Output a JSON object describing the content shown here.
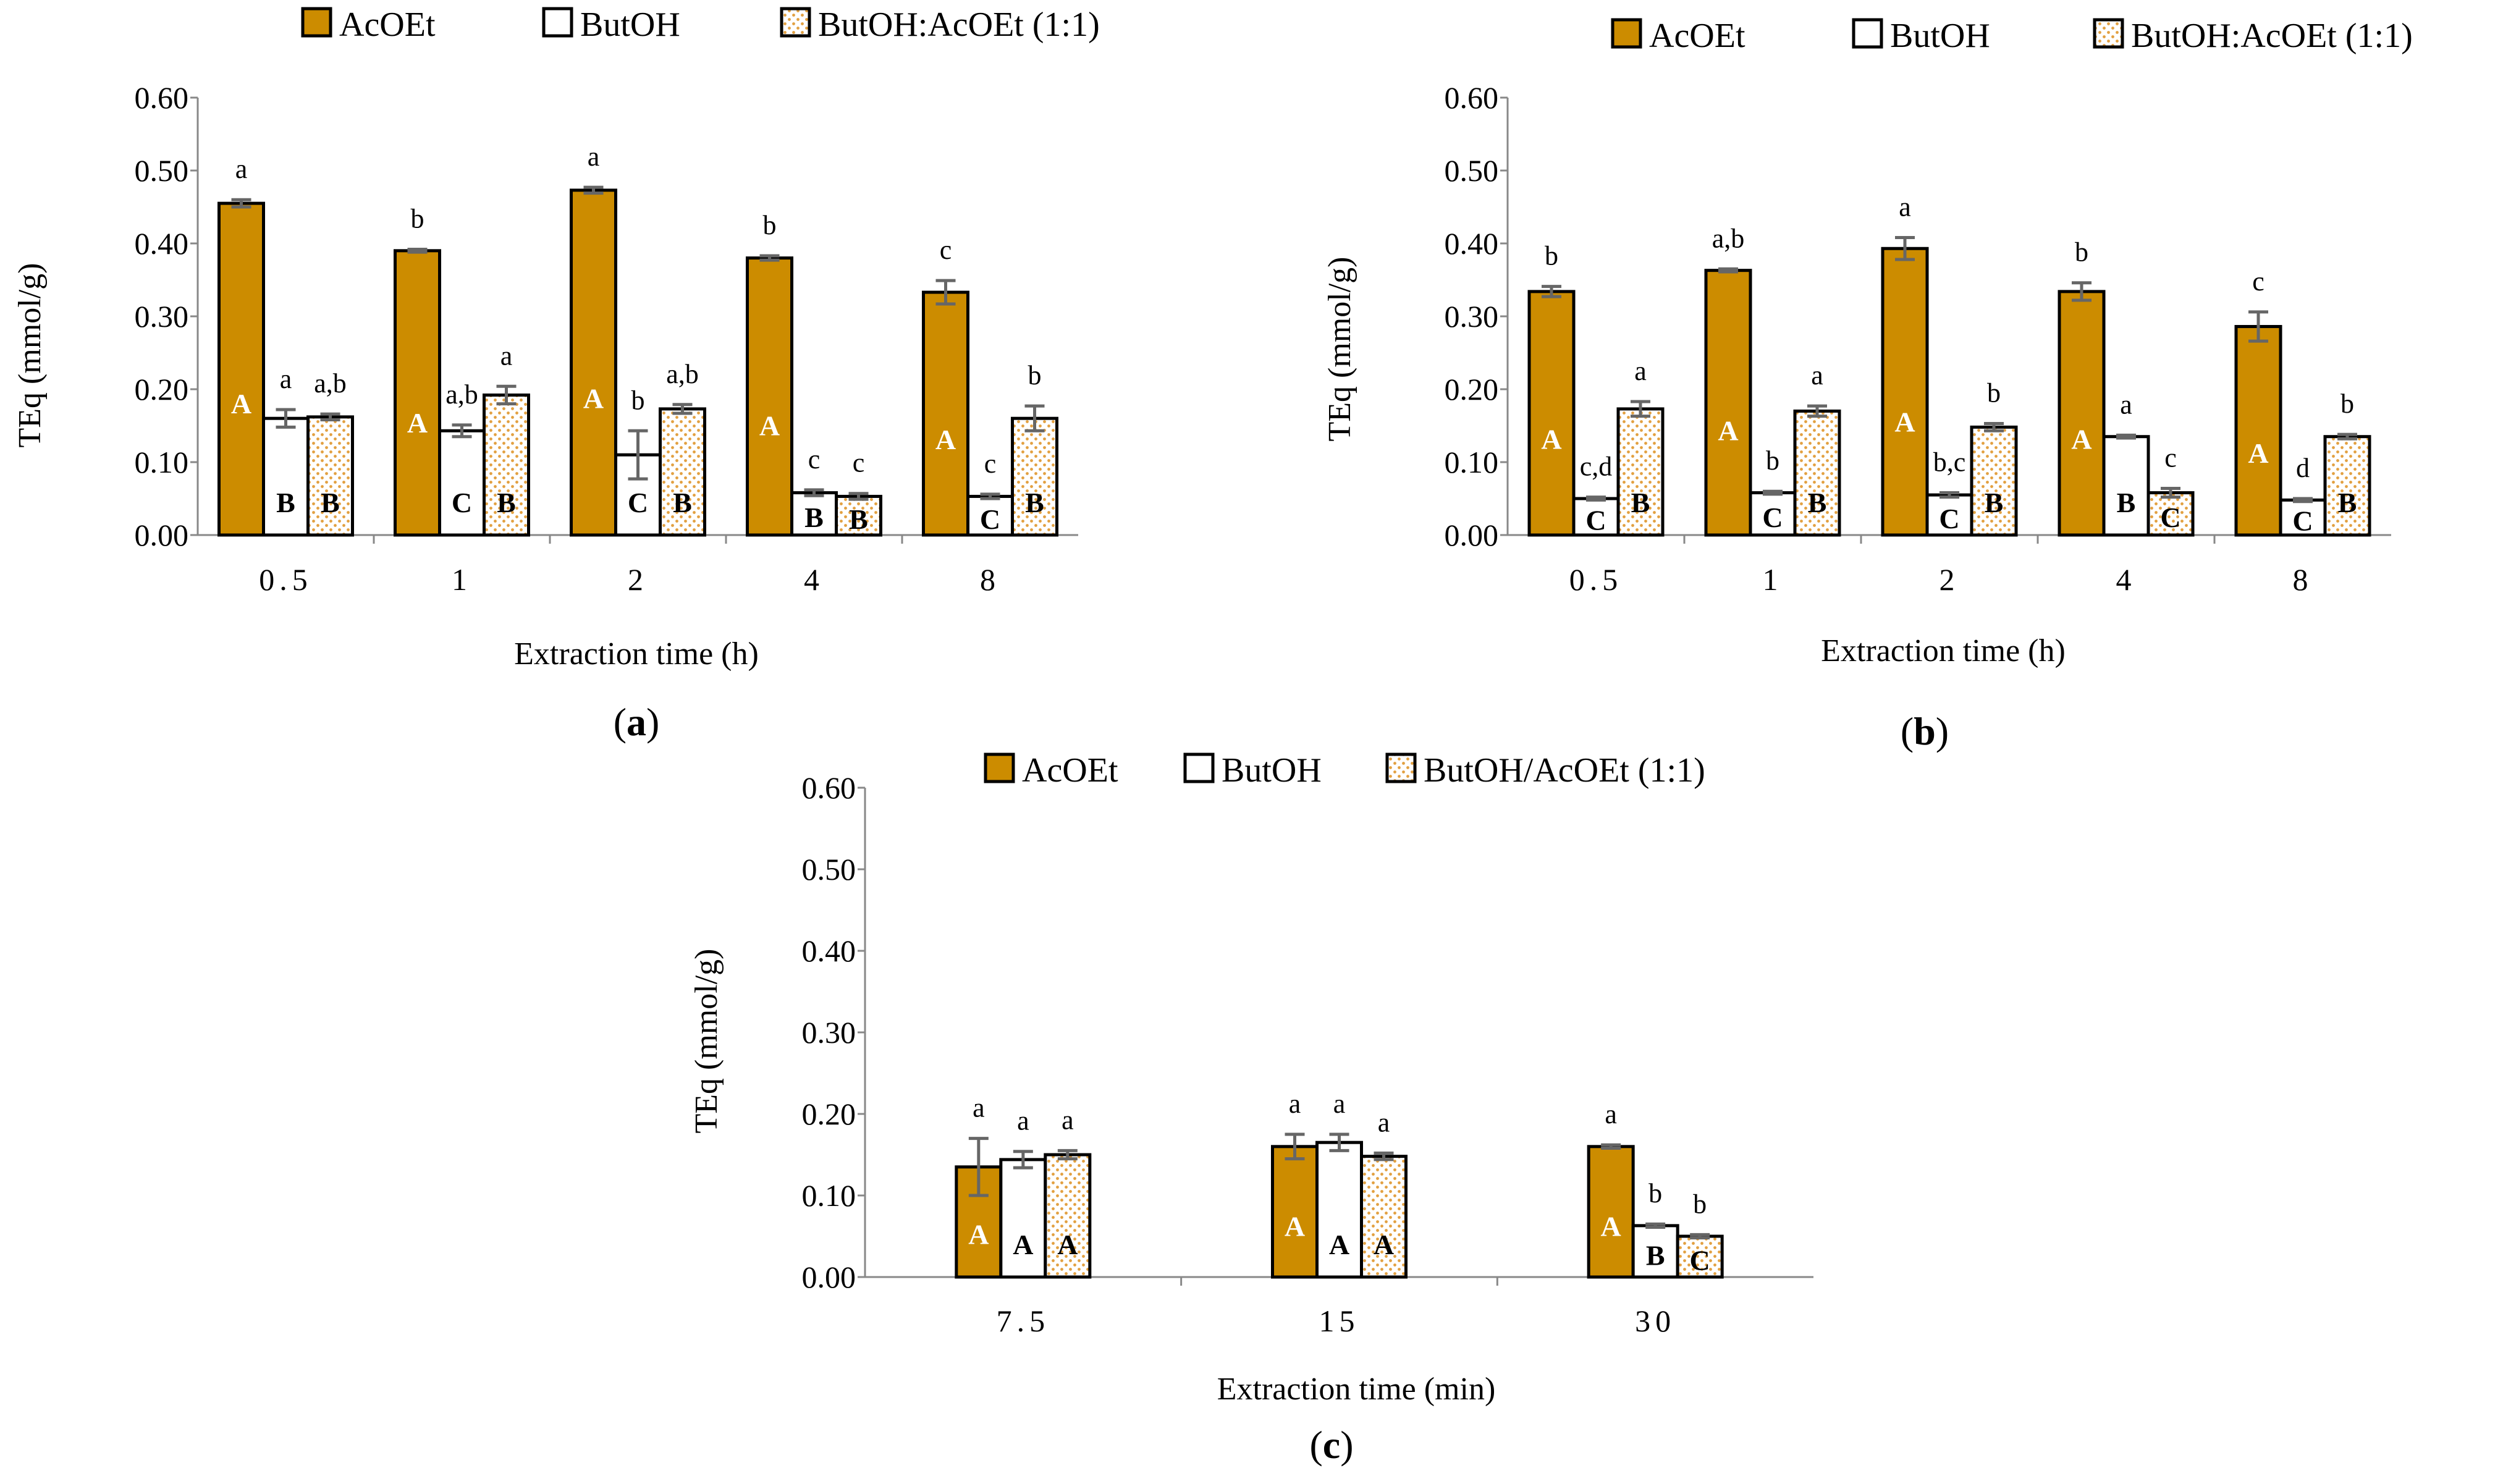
{
  "colors": {
    "acoet_fill": "#CC8C00",
    "bar_stroke": "#000000",
    "butoh_fill": "#FFFFFF",
    "mix_dot": "#E2A040",
    "error_bar": "#666666",
    "axis": "#888888"
  },
  "chart_data": [
    {
      "panel": "a",
      "panel_label": "a",
      "type": "bar",
      "xlabel": "Extraction time (h)",
      "ylabel": "TEq (mmol/g)",
      "ylim": [
        0,
        0.6
      ],
      "yticks": [
        "0.00",
        "0.10",
        "0.20",
        "0.30",
        "0.40",
        "0.50",
        "0.60"
      ],
      "categories": [
        "0.5",
        "1",
        "2",
        "4",
        "8"
      ],
      "legend": [
        "AcOEt",
        "ButOH",
        "ButOH:AcOEt (1:1)"
      ],
      "legend_position": "top",
      "series": [
        {
          "name": "AcOEt",
          "values": [
            0.455,
            0.39,
            0.473,
            0.38,
            0.333
          ],
          "errors": [
            0.005,
            0.002,
            0.004,
            0.003,
            0.016
          ],
          "upper_labels": [
            "A",
            "A",
            "A",
            "A",
            "A"
          ],
          "lower_labels": [
            "a",
            "b",
            "a",
            "b",
            "c"
          ]
        },
        {
          "name": "ButOH",
          "values": [
            0.16,
            0.143,
            0.11,
            0.058,
            0.053
          ],
          "errors": [
            0.012,
            0.008,
            0.033,
            0.004,
            0.003
          ],
          "upper_labels": [
            "B",
            "C",
            "C",
            "B",
            "C"
          ],
          "lower_labels": [
            "a",
            "a,b",
            "b",
            "c",
            "c"
          ]
        },
        {
          "name": "ButOH:AcOEt (1:1)",
          "values": [
            0.162,
            0.192,
            0.173,
            0.053,
            0.16
          ],
          "errors": [
            0.004,
            0.012,
            0.006,
            0.004,
            0.017
          ],
          "upper_labels": [
            "B",
            "B",
            "B",
            "B",
            "B"
          ],
          "lower_labels": [
            "a,b",
            "a",
            "a,b",
            "c",
            "b"
          ]
        }
      ]
    },
    {
      "panel": "b",
      "panel_label": "b",
      "type": "bar",
      "xlabel": "Extraction time (h)",
      "ylabel": "TEq (mmol/g)",
      "ylim": [
        0,
        0.6
      ],
      "yticks": [
        "0.00",
        "0.10",
        "0.20",
        "0.30",
        "0.40",
        "0.50",
        "0.60"
      ],
      "categories": [
        "0.5",
        "1",
        "2",
        "4",
        "8"
      ],
      "legend": [
        "AcOEt",
        "ButOH",
        "ButOH:AcOEt (1:1)"
      ],
      "legend_position": "top",
      "series": [
        {
          "name": "AcOEt",
          "values": [
            0.334,
            0.363,
            0.393,
            0.334,
            0.286
          ],
          "errors": [
            0.007,
            0.002,
            0.015,
            0.012,
            0.02
          ],
          "upper_labels": [
            "A",
            "A",
            "A",
            "A",
            "A"
          ],
          "lower_labels": [
            "b",
            "a,b",
            "a",
            "b",
            "c"
          ]
        },
        {
          "name": "ButOH",
          "values": [
            0.05,
            0.058,
            0.055,
            0.135,
            0.048
          ],
          "errors": [
            0.002,
            0.002,
            0.003,
            0.002,
            0.002
          ],
          "upper_labels": [
            "C",
            "C",
            "C",
            "B",
            "C"
          ],
          "lower_labels": [
            "c,d",
            "b",
            "b,c",
            "a",
            "d"
          ]
        },
        {
          "name": "ButOH:AcOEt (1:1)",
          "values": [
            0.173,
            0.17,
            0.148,
            0.058,
            0.135
          ],
          "errors": [
            0.01,
            0.007,
            0.005,
            0.006,
            0.003
          ],
          "upper_labels": [
            "B",
            "B",
            "B",
            "C",
            "B"
          ],
          "lower_labels": [
            "a",
            "a",
            "b",
            "c",
            "b"
          ]
        }
      ]
    },
    {
      "panel": "c",
      "panel_label": "c",
      "type": "bar",
      "xlabel": "Extraction time (min)",
      "ylabel": "TEq (mmol/g)",
      "ylim": [
        0,
        0.6
      ],
      "yticks": [
        "0.00",
        "0.10",
        "0.20",
        "0.30",
        "0.40",
        "0.50",
        "0.60"
      ],
      "categories": [
        "7.5",
        "15",
        "30"
      ],
      "legend": [
        "AcOEt",
        "ButOH",
        "ButOH/AcOEt (1:1)"
      ],
      "legend_position": "top",
      "series": [
        {
          "name": "AcOEt",
          "values": [
            0.135,
            0.16,
            0.16
          ],
          "errors": [
            0.035,
            0.015,
            0.002
          ],
          "upper_labels": [
            "A",
            "A",
            "A"
          ],
          "lower_labels": [
            "a",
            "a",
            "a"
          ]
        },
        {
          "name": "ButOH",
          "values": [
            0.144,
            0.165,
            0.063
          ],
          "errors": [
            0.01,
            0.01,
            0.002
          ],
          "upper_labels": [
            "A",
            "A",
            "B"
          ],
          "lower_labels": [
            "a",
            "a",
            "b"
          ]
        },
        {
          "name": "ButOH/AcOEt (1:1)",
          "values": [
            0.15,
            0.148,
            0.05
          ],
          "errors": [
            0.005,
            0.004,
            0.002
          ],
          "upper_labels": [
            "A",
            "A",
            "C"
          ],
          "lower_labels": [
            "a",
            "a",
            "b"
          ]
        }
      ]
    }
  ]
}
